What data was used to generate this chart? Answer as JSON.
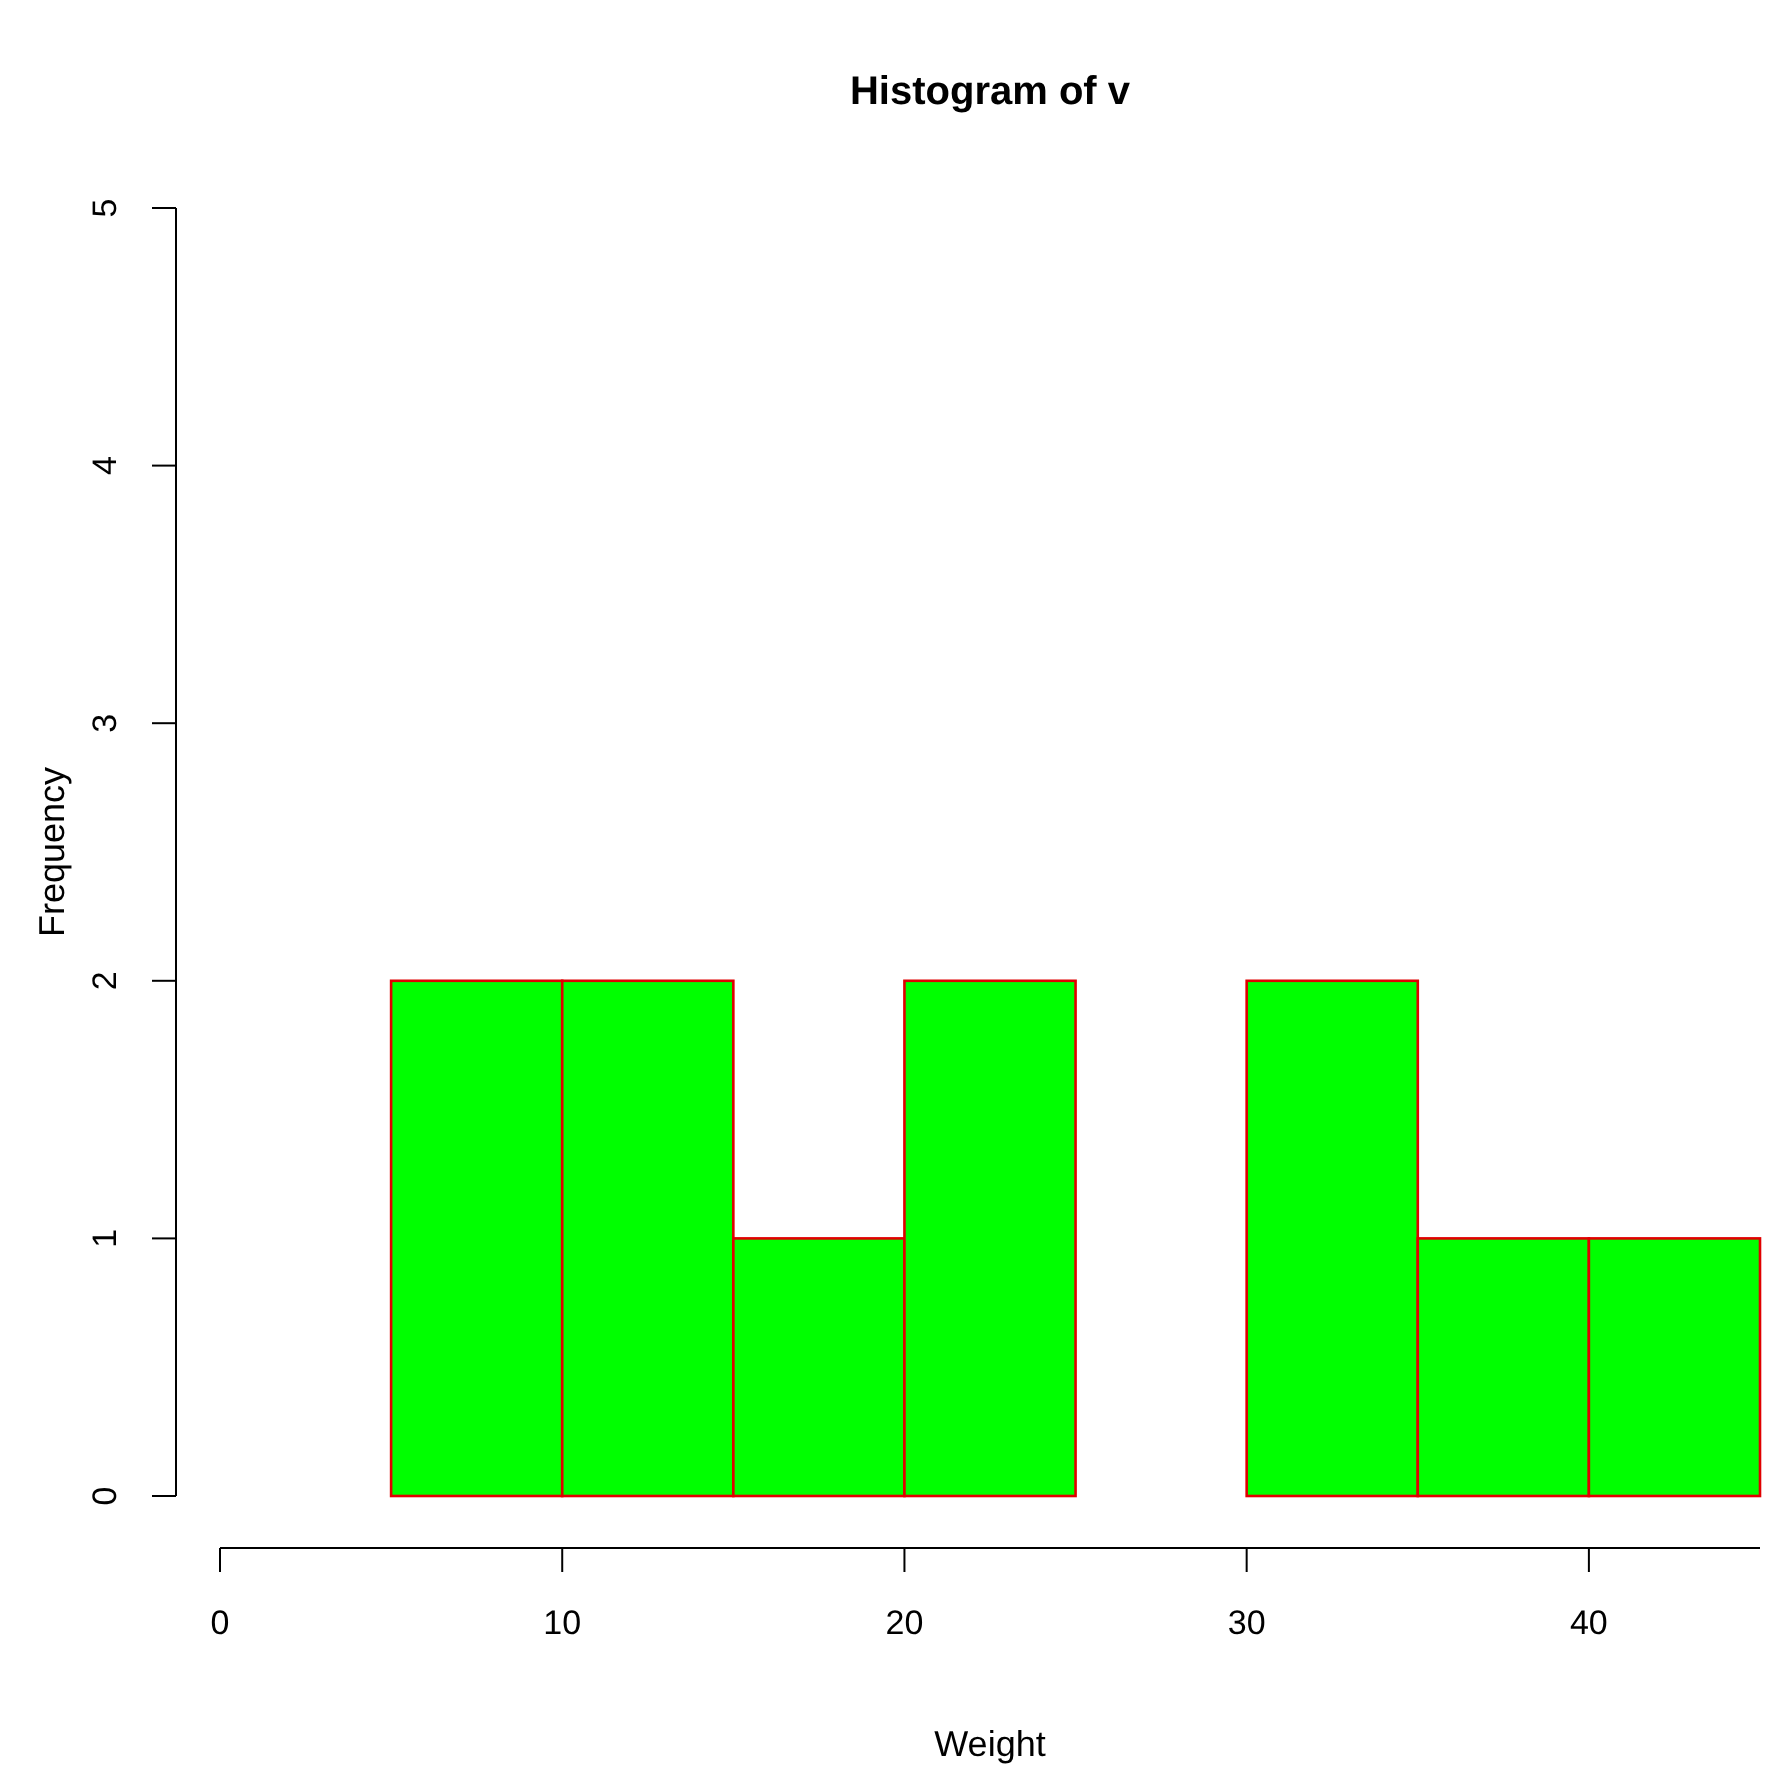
{
  "chart_data": {
    "type": "histogram",
    "title": "Histogram of v",
    "xlabel": "Weight",
    "ylabel": "Frequency",
    "bins": [
      5,
      10,
      15,
      20,
      25,
      30,
      35,
      40,
      45
    ],
    "values": [
      2,
      2,
      1,
      2,
      0,
      2,
      1,
      1
    ],
    "color": "#00ff00",
    "xlim": [
      0,
      45
    ],
    "xticks": [
      0,
      10,
      20,
      30,
      40
    ],
    "ylim": [
      0,
      5
    ],
    "yticks": [
      0,
      1,
      2,
      3,
      4,
      5
    ],
    "grid": false
  }
}
